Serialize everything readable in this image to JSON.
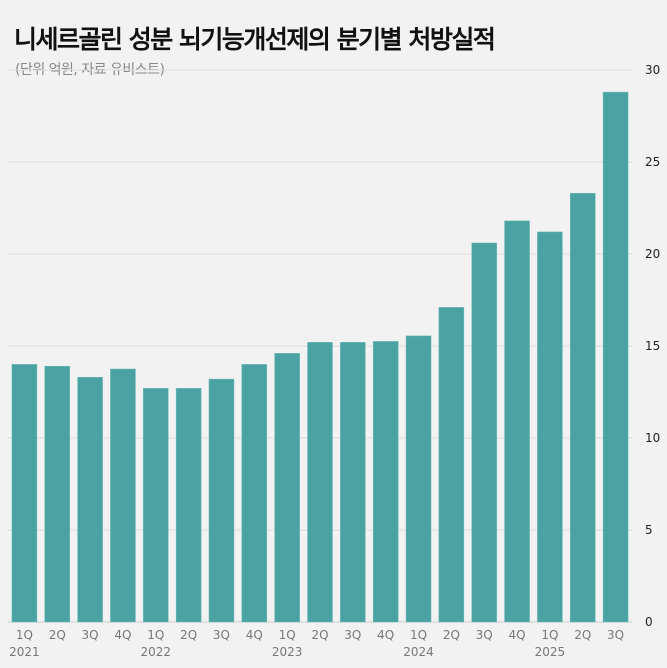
{
  "chart_data": {
    "type": "bar",
    "title": "니세르골린 성분 뇌기능개선제의 분기별 처방실적",
    "subtitle": "(단위 억원, 자료 유비스트)",
    "categories": [
      "1Q",
      "2Q",
      "3Q",
      "4Q",
      "1Q",
      "2Q",
      "3Q",
      "4Q",
      "1Q",
      "2Q",
      "3Q",
      "4Q",
      "1Q",
      "2Q",
      "3Q",
      "4Q",
      "1Q",
      "2Q",
      "3Q"
    ],
    "years": [
      {
        "label": "2021",
        "index": 0
      },
      {
        "label": "2022",
        "index": 4
      },
      {
        "label": "2023",
        "index": 8
      },
      {
        "label": "2024",
        "index": 12
      },
      {
        "label": "2025",
        "index": 16
      }
    ],
    "values": [
      14.0,
      13.9,
      13.3,
      13.75,
      12.7,
      12.7,
      13.2,
      14.0,
      14.6,
      15.2,
      15.2,
      15.25,
      15.55,
      17.1,
      20.6,
      21.8,
      21.2,
      23.3,
      28.8
    ],
    "ylim": [
      0,
      30
    ],
    "yticks": [
      0,
      5,
      10,
      15,
      20,
      25,
      30
    ],
    "axis_position": "right",
    "grid": true,
    "bar_color": "#4aa3a2"
  }
}
